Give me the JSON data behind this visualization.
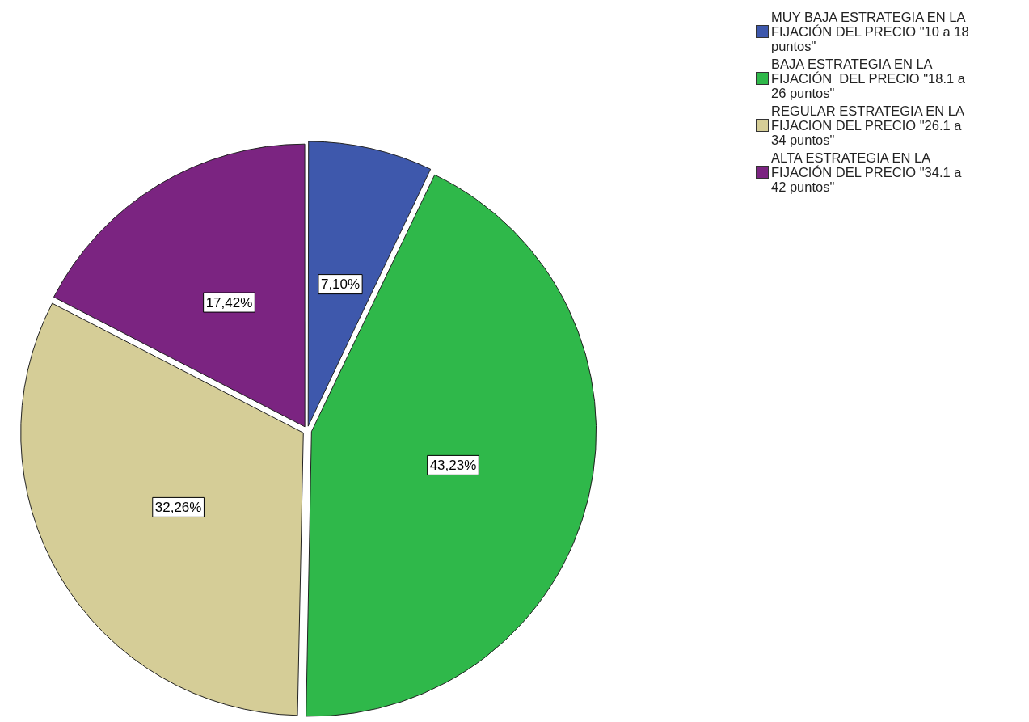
{
  "chart_data": {
    "type": "pie",
    "categories": [
      "MUY BAJA ESTRATEGIA EN LA FIJACIÓN DEL PRECIO \"10 a 18 puntos\"",
      "BAJA ESTRATEGIA EN LA FIJACIÓN  DEL PRECIO \"18.1 a 26 puntos\"",
      "REGULAR ESTRATEGIA EN LA FIJACION DEL PRECIO \"26.1 a 34 puntos\"",
      "ALTA ESTRATEGIA EN LA FIJACIÓN DEL PRECIO \"34.1 a 42 puntos\""
    ],
    "values": [
      7.1,
      43.23,
      32.26,
      17.42
    ],
    "value_labels": [
      "7,10%",
      "43,23%",
      "32,26%",
      "17,42%"
    ],
    "colors": [
      "#3e58ac",
      "#2fb84a",
      "#d5cd97",
      "#7b2481"
    ],
    "legend": "top right"
  }
}
